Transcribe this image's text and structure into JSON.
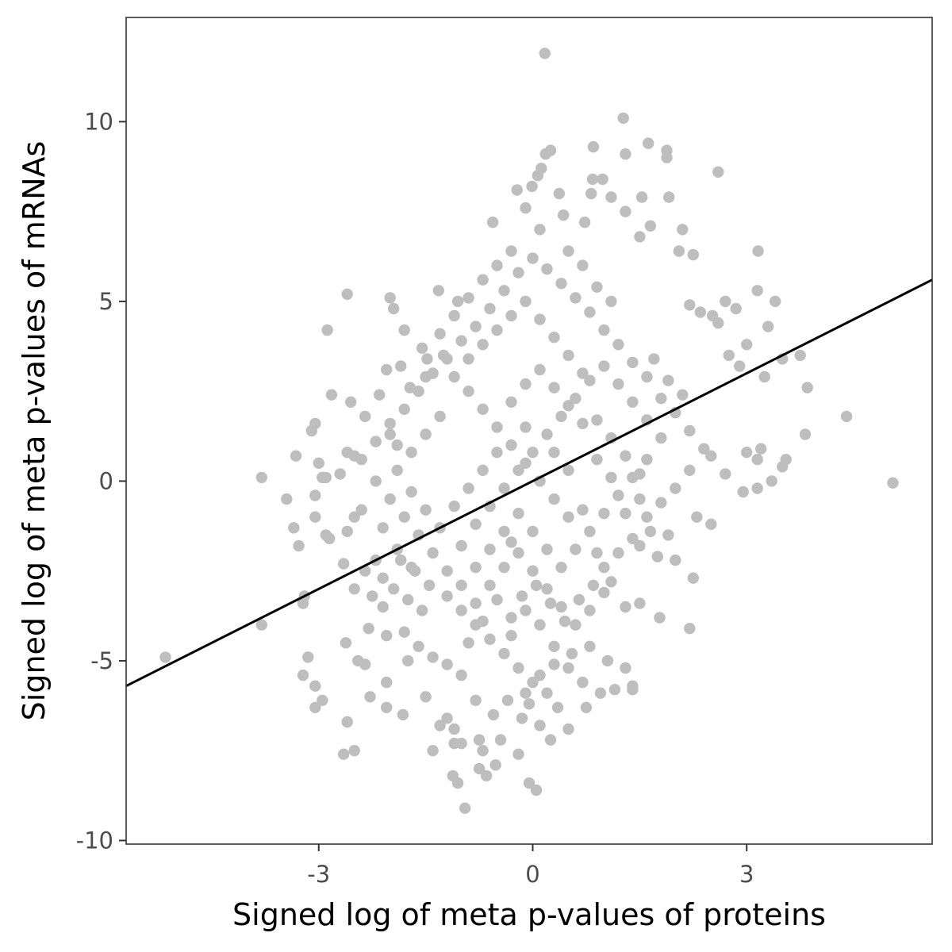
{
  "chart_data": {
    "type": "scatter",
    "title": "",
    "xlabel": "Signed log of meta p-values of proteins",
    "ylabel": "Signed log of meta p-values of mRNAs",
    "xlim": [
      -5.7,
      5.6
    ],
    "ylim": [
      -10.1,
      12.9
    ],
    "x_ticks": [
      -3,
      0,
      3
    ],
    "x_tick_labels": [
      "-3",
      "0",
      "3"
    ],
    "y_ticks": [
      -10,
      -5,
      0,
      5,
      10
    ],
    "y_tick_labels": [
      "-10",
      "-5",
      "0",
      "5",
      "10"
    ],
    "grid": false,
    "legend": "none",
    "point_color": "#bebebe",
    "line_color": "#000000",
    "fit_line": {
      "slope": 1.0,
      "intercept": 0.0
    },
    "points": [
      [
        0.17,
        11.9
      ],
      [
        1.27,
        10.1
      ],
      [
        0.25,
        9.2
      ],
      [
        0.18,
        9.1
      ],
      [
        0.85,
        9.3
      ],
      [
        1.62,
        9.4
      ],
      [
        1.88,
        9.2
      ],
      [
        1.88,
        9.0
      ],
      [
        1.3,
        9.1
      ],
      [
        2.6,
        8.6
      ],
      [
        0.07,
        8.5
      ],
      [
        0.12,
        8.7
      ],
      [
        0.84,
        8.4
      ],
      [
        0.98,
        8.4
      ],
      [
        -0.22,
        8.1
      ],
      [
        -0.01,
        8.2
      ],
      [
        0.37,
        8.0
      ],
      [
        1.1,
        7.9
      ],
      [
        1.53,
        7.9
      ],
      [
        1.91,
        7.9
      ],
      [
        0.82,
        8.0
      ],
      [
        -0.1,
        7.6
      ],
      [
        0.43,
        7.4
      ],
      [
        0.73,
        7.2
      ],
      [
        1.3,
        7.5
      ],
      [
        1.65,
        7.1
      ],
      [
        2.1,
        7.0
      ],
      [
        -0.56,
        7.2
      ],
      [
        0.1,
        7.0
      ],
      [
        1.5,
        6.8
      ],
      [
        2.05,
        6.4
      ],
      [
        2.25,
        6.3
      ],
      [
        3.16,
        6.4
      ],
      [
        -1.32,
        5.3
      ],
      [
        -1.05,
        5.0
      ],
      [
        -2.6,
        5.2
      ],
      [
        -2.0,
        5.1
      ],
      [
        -1.95,
        4.8
      ],
      [
        3.15,
        5.3
      ],
      [
        3.4,
        5.0
      ],
      [
        2.7,
        5.0
      ],
      [
        2.85,
        4.8
      ],
      [
        2.2,
        4.9
      ],
      [
        2.52,
        4.6
      ],
      [
        -2.88,
        4.2
      ],
      [
        -1.8,
        4.2
      ],
      [
        3.3,
        4.3
      ],
      [
        2.6,
        4.4
      ],
      [
        2.35,
        4.7
      ],
      [
        -1.55,
        3.7
      ],
      [
        -1.25,
        3.5
      ],
      [
        -1.48,
        3.4
      ],
      [
        3.0,
        3.8
      ],
      [
        2.75,
        3.5
      ],
      [
        3.5,
        3.4
      ],
      [
        3.75,
        3.5
      ],
      [
        2.9,
        3.2
      ],
      [
        3.25,
        2.9
      ],
      [
        3.85,
        2.6
      ],
      [
        -2.05,
        3.1
      ],
      [
        -1.85,
        3.2
      ],
      [
        -1.72,
        2.6
      ],
      [
        -2.15,
        2.4
      ],
      [
        -2.55,
        2.2
      ],
      [
        -2.82,
        2.4
      ],
      [
        -3.05,
        1.6
      ],
      [
        -3.1,
        1.4
      ],
      [
        -2.35,
        1.8
      ],
      [
        -2.0,
        1.3
      ],
      [
        3.2,
        0.9
      ],
      [
        3.55,
        0.6
      ],
      [
        3.82,
        1.3
      ],
      [
        4.4,
        1.8
      ],
      [
        -3.32,
        0.7
      ],
      [
        -3.0,
        0.5
      ],
      [
        -3.8,
        0.1
      ],
      [
        -2.95,
        0.1
      ],
      [
        -2.9,
        0.1
      ],
      [
        -2.7,
        0.2
      ],
      [
        -2.6,
        0.8
      ],
      [
        -2.5,
        0.7
      ],
      [
        3.15,
        0.6
      ],
      [
        3.5,
        0.4
      ],
      [
        3.35,
        0.0
      ],
      [
        3.15,
        -0.2
      ],
      [
        2.95,
        -0.3
      ],
      [
        2.7,
        0.2
      ],
      [
        2.5,
        0.7
      ],
      [
        3.0,
        0.8
      ],
      [
        5.05,
        -0.05
      ],
      [
        -3.45,
        -0.5
      ],
      [
        -3.05,
        -0.4
      ],
      [
        -3.35,
        -1.3
      ],
      [
        -2.9,
        -1.5
      ],
      [
        -3.05,
        -1.0
      ],
      [
        -2.85,
        -1.6
      ],
      [
        -2.6,
        -1.4
      ],
      [
        -3.28,
        -1.8
      ],
      [
        -2.5,
        -1.0
      ],
      [
        -2.4,
        -0.8
      ],
      [
        2.5,
        -1.2
      ],
      [
        2.3,
        -1.0
      ],
      [
        1.9,
        -1.5
      ],
      [
        1.65,
        -1.4
      ],
      [
        1.5,
        -1.8
      ],
      [
        -2.65,
        -2.3
      ],
      [
        -2.35,
        -2.5
      ],
      [
        -2.2,
        -2.2
      ],
      [
        -3.2,
        -3.2
      ],
      [
        -3.22,
        -3.4
      ],
      [
        -2.5,
        -3.0
      ],
      [
        -2.25,
        -3.2
      ],
      [
        -2.1,
        -3.5
      ],
      [
        2.0,
        -2.2
      ],
      [
        1.75,
        -2.1
      ],
      [
        2.25,
        -2.7
      ],
      [
        2.2,
        -4.1
      ],
      [
        1.78,
        -3.8
      ],
      [
        1.5,
        -3.4
      ],
      [
        1.3,
        -3.5
      ],
      [
        1.1,
        -2.8
      ],
      [
        -5.15,
        -4.9
      ],
      [
        -3.8,
        -4.0
      ],
      [
        -2.3,
        -4.1
      ],
      [
        -2.05,
        -4.3
      ],
      [
        -2.62,
        -4.5
      ],
      [
        -2.45,
        -5.0
      ],
      [
        -2.35,
        -5.1
      ],
      [
        -1.75,
        -5.0
      ],
      [
        -3.15,
        -4.9
      ],
      [
        -3.22,
        -5.4
      ],
      [
        -3.05,
        -5.7
      ],
      [
        -3.05,
        -6.3
      ],
      [
        -2.95,
        -6.1
      ],
      [
        -2.05,
        -5.6
      ],
      [
        -1.5,
        -6.0
      ],
      [
        -2.28,
        -6.0
      ],
      [
        -2.05,
        -6.3
      ],
      [
        -1.82,
        -6.5
      ],
      [
        -2.6,
        -6.7
      ],
      [
        -1.2,
        -6.6
      ],
      [
        -1.3,
        -6.8
      ],
      [
        -1.1,
        -6.9
      ],
      [
        -2.65,
        -7.6
      ],
      [
        -2.5,
        -7.5
      ],
      [
        -1.4,
        -7.5
      ],
      [
        -1.1,
        -7.3
      ],
      [
        -1.0,
        -7.3
      ],
      [
        -0.75,
        -7.2
      ],
      [
        -0.7,
        -7.5
      ],
      [
        -0.45,
        -7.2
      ],
      [
        -0.2,
        -7.6
      ],
      [
        -1.12,
        -8.2
      ],
      [
        -1.05,
        -8.4
      ],
      [
        -0.75,
        -8.0
      ],
      [
        -0.65,
        -8.2
      ],
      [
        -0.52,
        -7.9
      ],
      [
        -0.95,
        -9.1
      ],
      [
        -0.05,
        -8.4
      ],
      [
        0.05,
        -8.6
      ],
      [
        0.25,
        -7.2
      ],
      [
        0.5,
        -6.9
      ],
      [
        0.75,
        -6.3
      ],
      [
        0.95,
        -5.9
      ],
      [
        1.15,
        -5.8
      ],
      [
        1.4,
        -5.7
      ],
      [
        1.4,
        -5.8
      ],
      [
        1.3,
        -5.2
      ],
      [
        1.05,
        -5.0
      ],
      [
        0.8,
        -4.6
      ],
      [
        0.55,
        -4.8
      ],
      [
        0.3,
        -5.1
      ],
      [
        0.1,
        -5.4
      ],
      [
        -0.1,
        -5.9
      ],
      [
        -0.35,
        -6.1
      ],
      [
        -0.55,
        -6.5
      ],
      [
        -0.8,
        -6.1
      ],
      [
        -1.0,
        -5.4
      ],
      [
        -1.2,
        -5.1
      ],
      [
        -1.4,
        -4.9
      ],
      [
        -1.6,
        -4.6
      ],
      [
        -1.8,
        -4.2
      ],
      [
        -1.55,
        -3.6
      ],
      [
        -1.75,
        -3.3
      ],
      [
        -1.95,
        -3.0
      ],
      [
        -2.1,
        -2.7
      ],
      [
        -1.85,
        -2.2
      ],
      [
        -1.65,
        -2.5
      ],
      [
        -1.45,
        -2.9
      ],
      [
        -1.2,
        -3.2
      ],
      [
        -1.0,
        -3.6
      ],
      [
        -0.8,
        -4.0
      ],
      [
        -0.6,
        -4.4
      ],
      [
        -0.4,
        -4.8
      ],
      [
        -0.2,
        -5.2
      ],
      [
        0.0,
        -5.6
      ],
      [
        0.2,
        -5.9
      ],
      [
        0.35,
        -6.3
      ],
      [
        -0.15,
        -6.6
      ],
      [
        -0.05,
        -6.2
      ],
      [
        0.1,
        -6.8
      ],
      [
        -0.3,
        -3.8
      ],
      [
        -0.15,
        -3.2
      ],
      [
        0.05,
        -2.9
      ],
      [
        0.25,
        -3.4
      ],
      [
        0.45,
        -3.9
      ],
      [
        0.65,
        -3.3
      ],
      [
        0.85,
        -2.9
      ],
      [
        1.0,
        -2.4
      ],
      [
        1.2,
        -2.0
      ],
      [
        1.4,
        -1.6
      ],
      [
        1.6,
        -1.0
      ],
      [
        1.8,
        -0.6
      ],
      [
        2.0,
        -0.2
      ],
      [
        2.2,
        0.3
      ],
      [
        2.4,
        0.9
      ],
      [
        2.2,
        1.4
      ],
      [
        2.0,
        1.9
      ],
      [
        1.8,
        2.3
      ],
      [
        1.6,
        2.9
      ],
      [
        1.4,
        3.3
      ],
      [
        1.2,
        3.8
      ],
      [
        1.0,
        4.2
      ],
      [
        0.8,
        4.7
      ],
      [
        0.6,
        5.1
      ],
      [
        0.4,
        5.5
      ],
      [
        0.2,
        5.9
      ],
      [
        0.0,
        6.2
      ],
      [
        -0.2,
        5.8
      ],
      [
        -0.4,
        5.3
      ],
      [
        -0.6,
        4.8
      ],
      [
        -0.8,
        4.3
      ],
      [
        -1.0,
        3.9
      ],
      [
        -1.2,
        3.4
      ],
      [
        -1.4,
        3.0
      ],
      [
        -1.6,
        2.5
      ],
      [
        -1.8,
        2.0
      ],
      [
        -2.0,
        1.6
      ],
      [
        -2.2,
        1.1
      ],
      [
        -2.4,
        0.6
      ],
      [
        -2.2,
        0.0
      ],
      [
        -2.0,
        -0.5
      ],
      [
        -1.8,
        -1.0
      ],
      [
        -1.6,
        -1.5
      ],
      [
        -1.4,
        -2.0
      ],
      [
        -1.2,
        -2.5
      ],
      [
        -1.0,
        -1.8
      ],
      [
        -0.8,
        -1.2
      ],
      [
        -0.6,
        -0.7
      ],
      [
        -0.4,
        -0.2
      ],
      [
        -0.2,
        0.3
      ],
      [
        0.0,
        0.8
      ],
      [
        0.2,
        1.3
      ],
      [
        0.4,
        1.8
      ],
      [
        0.6,
        2.3
      ],
      [
        0.8,
        2.8
      ],
      [
        1.0,
        3.2
      ],
      [
        1.2,
        2.7
      ],
      [
        1.4,
        2.2
      ],
      [
        1.6,
        1.7
      ],
      [
        1.8,
        1.2
      ],
      [
        1.6,
        0.6
      ],
      [
        1.4,
        0.1
      ],
      [
        1.2,
        -0.4
      ],
      [
        1.0,
        -0.9
      ],
      [
        0.8,
        -1.4
      ],
      [
        0.6,
        -1.9
      ],
      [
        0.4,
        -2.4
      ],
      [
        0.2,
        -1.9
      ],
      [
        0.0,
        -1.4
      ],
      [
        -0.2,
        -0.9
      ],
      [
        -0.4,
        -1.4
      ],
      [
        -0.6,
        -1.9
      ],
      [
        -0.8,
        -2.4
      ],
      [
        -1.0,
        -2.9
      ],
      [
        -0.8,
        -3.4
      ],
      [
        -0.6,
        -2.9
      ],
      [
        -0.4,
        -2.4
      ],
      [
        -0.2,
        -2.0
      ],
      [
        0.0,
        -2.5
      ],
      [
        0.2,
        -3.0
      ],
      [
        0.4,
        -3.5
      ],
      [
        0.6,
        -4.0
      ],
      [
        0.8,
        -3.6
      ],
      [
        1.0,
        -3.1
      ],
      [
        0.5,
        -1.0
      ],
      [
        0.3,
        -0.5
      ],
      [
        0.1,
        0.0
      ],
      [
        -0.1,
        0.5
      ],
      [
        -0.3,
        1.0
      ],
      [
        -0.5,
        1.5
      ],
      [
        -0.7,
        2.0
      ],
      [
        -0.9,
        2.5
      ],
      [
        -1.1,
        2.9
      ],
      [
        -0.9,
        3.4
      ],
      [
        -0.7,
        3.8
      ],
      [
        -0.5,
        4.2
      ],
      [
        -0.3,
        4.6
      ],
      [
        -0.1,
        5.0
      ],
      [
        0.1,
        4.5
      ],
      [
        0.3,
        4.0
      ],
      [
        0.5,
        3.5
      ],
      [
        0.7,
        3.0
      ],
      [
        0.9,
        1.7
      ],
      [
        1.1,
        1.2
      ],
      [
        1.3,
        0.7
      ],
      [
        1.5,
        0.2
      ],
      [
        -1.3,
        1.8
      ],
      [
        -1.5,
        1.3
      ],
      [
        -1.7,
        0.8
      ],
      [
        -1.9,
        0.3
      ],
      [
        -1.7,
        -0.3
      ],
      [
        -1.5,
        -0.8
      ],
      [
        -1.3,
        -1.3
      ],
      [
        -1.1,
        -0.7
      ],
      [
        -0.9,
        -0.2
      ],
      [
        -0.7,
        0.3
      ],
      [
        -0.5,
        0.8
      ],
      [
        -0.3,
        2.2
      ],
      [
        -0.1,
        2.7
      ],
      [
        0.1,
        3.1
      ],
      [
        0.3,
        2.6
      ],
      [
        0.5,
        2.1
      ],
      [
        0.7,
        1.6
      ],
      [
        0.9,
        0.6
      ],
      [
        1.1,
        0.1
      ],
      [
        1.3,
        -0.9
      ],
      [
        1.5,
        -0.5
      ],
      [
        0.7,
        -0.8
      ],
      [
        0.5,
        0.3
      ],
      [
        0.3,
        0.8
      ],
      [
        -0.1,
        1.5
      ],
      [
        -0.3,
        -1.7
      ],
      [
        -0.5,
        -3.3
      ],
      [
        -0.7,
        -3.9
      ],
      [
        -0.9,
        -4.5
      ],
      [
        -0.3,
        -4.3
      ],
      [
        0.1,
        -4.0
      ],
      [
        0.3,
        -4.6
      ],
      [
        0.5,
        -5.2
      ],
      [
        0.7,
        -5.6
      ],
      [
        -0.1,
        -3.6
      ],
      [
        0.9,
        -2.0
      ],
      [
        1.7,
        3.4
      ],
      [
        1.9,
        2.8
      ],
      [
        2.1,
        2.4
      ],
      [
        0.9,
        5.4
      ],
      [
        1.1,
        5.0
      ],
      [
        0.5,
        6.4
      ],
      [
        0.7,
        6.0
      ],
      [
        -0.3,
        6.4
      ],
      [
        -0.5,
        6.0
      ],
      [
        -0.7,
        5.6
      ],
      [
        -0.9,
        5.1
      ],
      [
        -1.1,
        4.6
      ],
      [
        -1.3,
        4.1
      ],
      [
        -1.5,
        2.9
      ],
      [
        -1.9,
        1.0
      ],
      [
        -2.1,
        -1.3
      ],
      [
        -1.9,
        -1.9
      ],
      [
        -1.7,
        -2.4
      ]
    ]
  }
}
